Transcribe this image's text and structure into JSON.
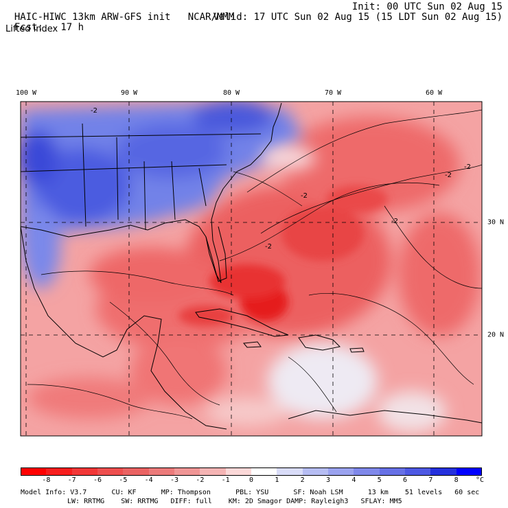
{
  "header": {
    "model_title": "HAIC-HIWC 13km ARW-GFS init",
    "org": "NCAR/MMM",
    "fcst_label": "Fcst:",
    "fcst_value": "17 h",
    "init": "Init: 00 UTC Sun 02 Aug 15",
    "valid": "Valid: 17 UTC Sun 02 Aug 15 (15 LDT Sun 02 Aug 15)",
    "field": "Lifted index"
  },
  "map": {
    "lon_labels": [
      "100 W",
      "90 W",
      "80 W",
      "70 W",
      "60 W"
    ],
    "lat_labels": [
      "30 N",
      "20 N"
    ],
    "contour_label": "-2",
    "colors": {
      "background": "#f4a3a3",
      "stable_blue": "#5a6ee6",
      "deep_blue": "#3946d8",
      "unstable_red": "#ec4a4a",
      "very_unstable": "#e81414",
      "neutral": "#f3eef2"
    }
  },
  "colorbar": {
    "ticks": [
      "-8",
      "-7",
      "-6",
      "-5",
      "-4",
      "-3",
      "-2",
      "-1",
      "0",
      "1",
      "2",
      "3",
      "4",
      "5",
      "6",
      "7",
      "8"
    ],
    "unit": "°C",
    "colors": [
      "#ff0000",
      "#f71d1d",
      "#f23636",
      "#ee4e4e",
      "#ea6262",
      "#ec7a7a",
      "#f09595",
      "#f5b4b4",
      "#fbd8d8",
      "#ffffff",
      "#d9dcf8",
      "#b6bdf3",
      "#9aa2ef",
      "#7f88ea",
      "#6670e6",
      "#4d58e3",
      "#2430dd",
      "#0000ff"
    ]
  },
  "footer": {
    "line1": "Model Info: V3.7      CU: KF      MP: Thompson      PBL: YSU      SF: Noah LSM      13 km    51 levels   60 sec",
    "line2": "LW: RRTMG    SW: RRTMG   DIFF: full    KM: 2D Smagor DAMP: Rayleigh3   SFLAY: MM5"
  }
}
